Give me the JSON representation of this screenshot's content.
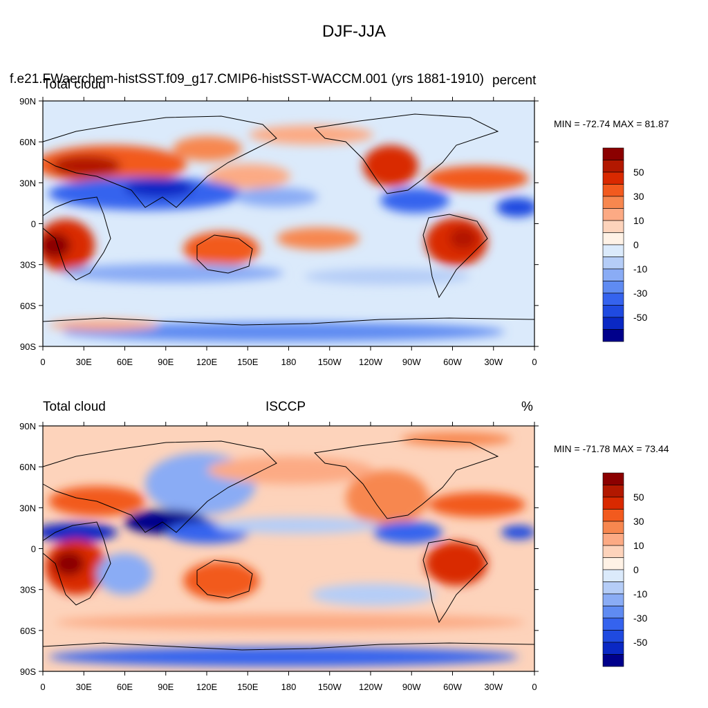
{
  "main_title": "DJF-JJA",
  "panels": [
    {
      "left_title": "Total cloud",
      "long_title": "f.e21.FWaerchem-histSST.f09_g17.CMIP6-histSST-WACCM.001 (yrs 1881-1910)",
      "right_title": "percent",
      "center_title": "",
      "stats": "MIN = -72.74 MAX =  81.87",
      "colorbar_labels": [
        "50",
        "30",
        "10",
        "0",
        "-10",
        "-30",
        "-50"
      ],
      "y_ticks": [
        "90N",
        "60N",
        "30N",
        "0",
        "30S",
        "60S",
        "90S"
      ],
      "x_ticks": [
        "0",
        "30E",
        "60E",
        "90E",
        "120E",
        "150E",
        "180",
        "150W",
        "120W",
        "90W",
        "60W",
        "30W",
        "0"
      ]
    },
    {
      "left_title": "Total cloud",
      "center_title": "ISCCP",
      "right_title": "%",
      "stats": "MIN = -71.78 MAX =  73.44",
      "colorbar_labels": [
        "50",
        "30",
        "10",
        "0",
        "-10",
        "-30",
        "-50"
      ],
      "y_ticks": [
        "90N",
        "60N",
        "30N",
        "0",
        "30S",
        "60S",
        "90S"
      ],
      "x_ticks": [
        "0",
        "30E",
        "60E",
        "90E",
        "120E",
        "150E",
        "180",
        "150W",
        "120W",
        "90W",
        "60W",
        "30W",
        "0"
      ]
    }
  ],
  "colors": [
    "#8b0000",
    "#b21800",
    "#d92900",
    "#f25a1e",
    "#f7874f",
    "#fcaa84",
    "#fdd3bb",
    "#fff2e6",
    "#dbeafb",
    "#b5cdf7",
    "#8aacf5",
    "#5f8bf2",
    "#3563ee",
    "#1f4ae0",
    "#0a28c4",
    "#00008b"
  ]
}
